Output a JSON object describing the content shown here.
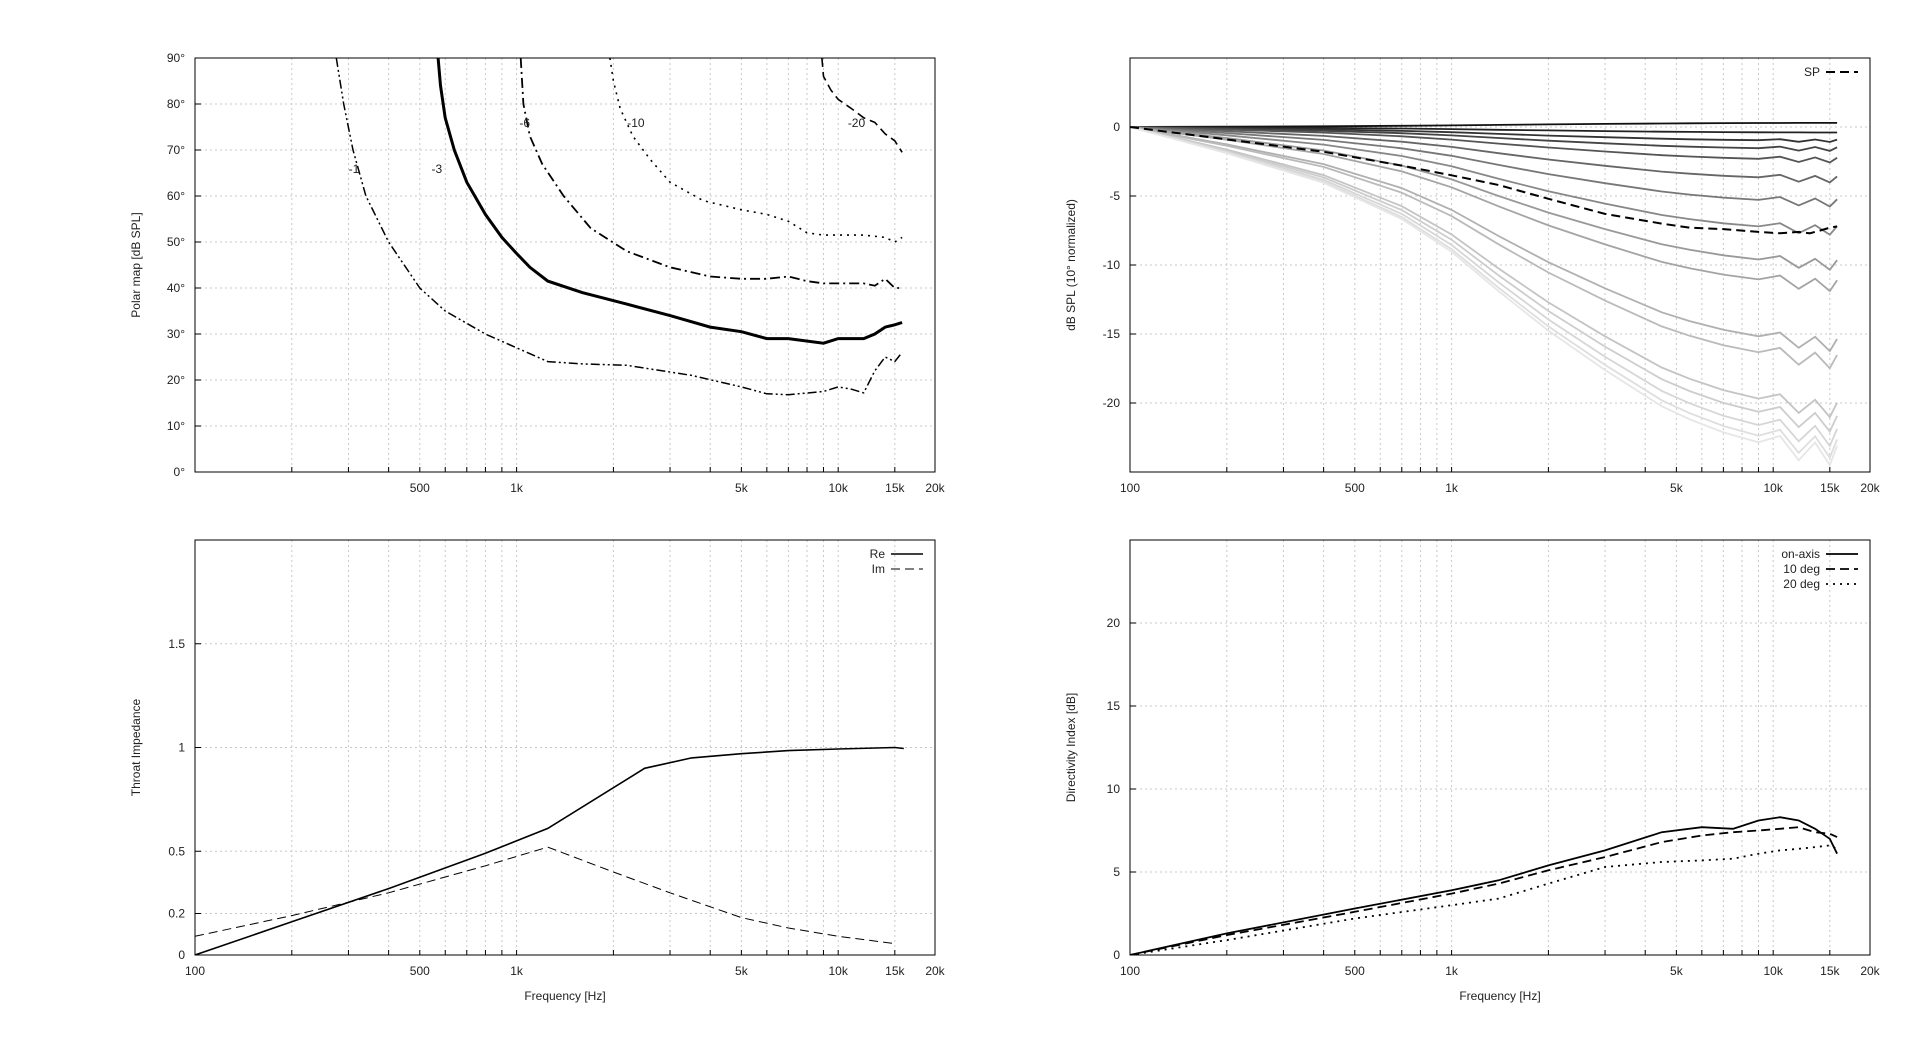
{
  "chart_data": [
    {
      "type": "line",
      "panel": "polar-map",
      "ylabel": "Polar map [dB SPL]",
      "xlabel": "",
      "xscale": "log",
      "xlim": [
        100,
        20000
      ],
      "ylim": [
        0,
        90
      ],
      "xticks": [
        {
          "v": 500,
          "t": "500"
        },
        {
          "v": 1000,
          "t": "1k"
        },
        {
          "v": 5000,
          "t": "5k"
        },
        {
          "v": 10000,
          "t": "10k"
        },
        {
          "v": 15000,
          "t": "15k"
        },
        {
          "v": 20000,
          "t": "20k"
        }
      ],
      "yticks": [
        {
          "v": 0,
          "t": "0°"
        },
        {
          "v": 10,
          "t": "10°"
        },
        {
          "v": 20,
          "t": "20°"
        },
        {
          "v": 30,
          "t": "30°"
        },
        {
          "v": 40,
          "t": "40°"
        },
        {
          "v": 50,
          "t": "50°"
        },
        {
          "v": 60,
          "t": "60°"
        },
        {
          "v": 70,
          "t": "70°"
        },
        {
          "v": 80,
          "t": "80°"
        },
        {
          "v": 90,
          "t": "90°"
        }
      ],
      "grid": true,
      "series": [
        {
          "name": "-1",
          "style": "dashdotdot",
          "width": 1.5,
          "label_at": [
            312,
            65
          ],
          "x": [
            275,
            290,
            310,
            340,
            400,
            500,
            600,
            800,
            1000,
            1250,
            1600,
            2200,
            3500,
            5000,
            6000,
            7000,
            9000,
            10000,
            11000,
            12000,
            13000,
            14000,
            15000,
            15800
          ],
          "y": [
            90,
            80,
            70,
            60,
            50,
            40,
            35,
            30,
            27,
            24,
            23.5,
            23.2,
            21,
            18.5,
            17,
            16.8,
            17.5,
            18.5,
            18,
            17.2,
            22,
            25,
            24,
            26
          ]
        },
        {
          "name": "-3",
          "style": "solid",
          "width": 3,
          "label_at": [
            565,
            65
          ],
          "x": [
            570,
            580,
            600,
            640,
            700,
            800,
            900,
            1000,
            1100,
            1250,
            1600,
            2200,
            3000,
            4000,
            5000,
            6000,
            7000,
            9000,
            10000,
            11000,
            12000,
            13000,
            14000,
            15000,
            15800
          ],
          "y": [
            90,
            84,
            77,
            70,
            63,
            56,
            51,
            47.5,
            44.5,
            41.5,
            39,
            36.5,
            34,
            31.5,
            30.5,
            29,
            29,
            28,
            29,
            29,
            29,
            30,
            31.5,
            32,
            32.5
          ]
        },
        {
          "name": "-6",
          "style": "dashdot",
          "width": 1.8,
          "label_at": [
            1060,
            75
          ],
          "x": [
            1030,
            1050,
            1100,
            1200,
            1400,
            1700,
            2200,
            3000,
            4000,
            5000,
            6000,
            7000,
            8000,
            9000,
            10000,
            12000,
            13000,
            14000,
            15000,
            15800
          ],
          "y": [
            90,
            80,
            73,
            67,
            60,
            53,
            48,
            44.5,
            42.5,
            42,
            42,
            42.5,
            41.5,
            41,
            41,
            41,
            40.5,
            42,
            40,
            40
          ]
        },
        {
          "name": "-10",
          "style": "dotted",
          "width": 1.6,
          "label_at": [
            2350,
            75
          ],
          "x": [
            1950,
            2000,
            2100,
            2300,
            2600,
            3000,
            3800,
            5000,
            6000,
            7000,
            8000,
            9000,
            10000,
            12000,
            14000,
            15000,
            15800
          ],
          "y": [
            90,
            85,
            79,
            73,
            68,
            63,
            59,
            57,
            56,
            54.5,
            52,
            51.5,
            51.5,
            51.5,
            51,
            50,
            51
          ]
        },
        {
          "name": "-20",
          "style": "dashed",
          "width": 1.6,
          "label_at": [
            11400,
            75
          ],
          "x": [
            8900,
            9000,
            9500,
            10000,
            11000,
            12000,
            13000,
            14000,
            15000,
            15800
          ],
          "y": [
            90,
            86,
            83,
            81,
            79,
            77,
            76,
            73.5,
            72,
            69.5
          ]
        }
      ]
    },
    {
      "type": "line",
      "panel": "normalized-spl",
      "ylabel": "dB SPL (10° normalized)",
      "xlabel": "",
      "xscale": "log",
      "xlim": [
        100,
        20000
      ],
      "ylim": [
        -25,
        5
      ],
      "xticks": [
        {
          "v": 100,
          "t": "100"
        },
        {
          "v": 500,
          "t": "500"
        },
        {
          "v": 1000,
          "t": "1k"
        },
        {
          "v": 5000,
          "t": "5k"
        },
        {
          "v": 10000,
          "t": "10k"
        },
        {
          "v": 15000,
          "t": "15k"
        },
        {
          "v": 20000,
          "t": "20k"
        }
      ],
      "yticks": [
        {
          "v": 0,
          "t": "0"
        },
        {
          "v": -5,
          "t": "-5"
        },
        {
          "v": -10,
          "t": "-10"
        },
        {
          "v": -15,
          "t": "-15"
        },
        {
          "v": -20,
          "t": "-20"
        }
      ],
      "grid": true,
      "legend": {
        "position": "top-right",
        "entries": [
          "SP"
        ]
      },
      "angle_curves": {
        "x": [
          100,
          200,
          400,
          700,
          1000,
          1400,
          2000,
          3000,
          4500,
          5500,
          7000,
          9000,
          10500,
          12000,
          13500,
          15000,
          15800
        ],
        "end_values": [
          0.3,
          -0.4,
          -1.0,
          -1.6,
          -2.4,
          -3.8,
          -5.5,
          -7.5,
          -10.0,
          -11.5,
          -15.8,
          -17.0,
          -20.5,
          -21.5,
          -22.5,
          -23.3,
          -23.8
        ],
        "colors": [
          "#111111",
          "#222222",
          "#333333",
          "#444444",
          "#555555",
          "#666666",
          "#777777",
          "#888888",
          "#999999",
          "#a4a4a4",
          "#b0b0b0",
          "#bababa",
          "#c4c4c4",
          "#cdcdcd",
          "#d6d6d6",
          "#dedede",
          "#e6e6e6"
        ]
      },
      "series": [
        {
          "name": "SP",
          "style": "dashed",
          "width": 2,
          "x": [
            100,
            200,
            400,
            700,
            1000,
            1400,
            2000,
            3000,
            4500,
            5500,
            7000,
            9000,
            10500,
            12000,
            13000,
            14000,
            15000,
            15800
          ],
          "y": [
            0,
            -0.9,
            -1.8,
            -2.8,
            -3.5,
            -4.2,
            -5.2,
            -6.3,
            -7.0,
            -7.3,
            -7.4,
            -7.6,
            -7.7,
            -7.6,
            -7.7,
            -7.5,
            -7.3,
            -7.2
          ]
        }
      ]
    },
    {
      "type": "line",
      "panel": "throat-impedance",
      "ylabel": "Throat Impedance",
      "xlabel": "Frequency [Hz]",
      "xscale": "log",
      "xlim": [
        100,
        20000
      ],
      "ylim": [
        0,
        2
      ],
      "xticks": [
        {
          "v": 100,
          "t": "100"
        },
        {
          "v": 500,
          "t": "500"
        },
        {
          "v": 1000,
          "t": "1k"
        },
        {
          "v": 5000,
          "t": "5k"
        },
        {
          "v": 10000,
          "t": "10k"
        },
        {
          "v": 15000,
          "t": "15k"
        },
        {
          "v": 20000,
          "t": "20k"
        }
      ],
      "yticks": [
        {
          "v": 0,
          "t": "0"
        },
        {
          "v": 0.2,
          "t": "0.2"
        },
        {
          "v": 0.5,
          "t": "0.5"
        },
        {
          "v": 1,
          "t": "1"
        },
        {
          "v": 1.5,
          "t": "1.5"
        }
      ],
      "grid": true,
      "legend": {
        "position": "top-right",
        "entries": [
          "Re",
          "Im"
        ]
      },
      "series": [
        {
          "name": "Re",
          "style": "solid",
          "width": 1.6,
          "x": [
            100,
            200,
            400,
            800,
            1250,
            2500,
            3500,
            5000,
            7000,
            10000,
            15000,
            16000
          ],
          "y": [
            0,
            0.16,
            0.32,
            0.49,
            0.61,
            0.9,
            0.95,
            0.97,
            0.985,
            0.993,
            1.0,
            0.995
          ]
        },
        {
          "name": "Im",
          "style": "dashed",
          "width": 1,
          "x": [
            100,
            200,
            400,
            800,
            1250,
            2000,
            3000,
            5000,
            7000,
            10000,
            15000
          ],
          "y": [
            0.09,
            0.19,
            0.3,
            0.43,
            0.52,
            0.4,
            0.3,
            0.18,
            0.13,
            0.09,
            0.055
          ]
        }
      ]
    },
    {
      "type": "line",
      "panel": "directivity-index",
      "ylabel": "Directivity Index [dB]",
      "xlabel": "Frequency [Hz]",
      "xscale": "log",
      "xlim": [
        100,
        20000
      ],
      "ylim": [
        0,
        25
      ],
      "xticks": [
        {
          "v": 100,
          "t": "100"
        },
        {
          "v": 500,
          "t": "500"
        },
        {
          "v": 1000,
          "t": "1k"
        },
        {
          "v": 5000,
          "t": "5k"
        },
        {
          "v": 10000,
          "t": "10k"
        },
        {
          "v": 15000,
          "t": "15k"
        },
        {
          "v": 20000,
          "t": "20k"
        }
      ],
      "yticks": [
        {
          "v": 0,
          "t": "0"
        },
        {
          "v": 5,
          "t": "5"
        },
        {
          "v": 10,
          "t": "10"
        },
        {
          "v": 15,
          "t": "15"
        },
        {
          "v": 20,
          "t": "20"
        }
      ],
      "grid": true,
      "legend": {
        "position": "top-right",
        "entries": [
          "on-axis",
          "10 deg",
          "20 deg"
        ]
      },
      "series": [
        {
          "name": "on-axis",
          "style": "solid",
          "width": 1.8,
          "x": [
            100,
            200,
            500,
            1000,
            1400,
            2000,
            3000,
            4500,
            6000,
            7500,
            9000,
            10500,
            12000,
            13500,
            15000,
            15800
          ],
          "y": [
            0,
            1.3,
            2.8,
            3.9,
            4.5,
            5.4,
            6.3,
            7.4,
            7.7,
            7.6,
            8.1,
            8.3,
            8.1,
            7.6,
            7.0,
            6.1
          ]
        },
        {
          "name": "10 deg",
          "style": "dashed",
          "width": 1.8,
          "x": [
            100,
            200,
            500,
            1000,
            1400,
            2000,
            3000,
            4500,
            6000,
            7500,
            9000,
            10500,
            12000,
            13500,
            15000,
            15800
          ],
          "y": [
            0,
            1.2,
            2.6,
            3.7,
            4.3,
            5.1,
            5.9,
            6.8,
            7.2,
            7.4,
            7.5,
            7.6,
            7.7,
            7.4,
            7.3,
            7.1
          ]
        },
        {
          "name": "20 deg",
          "style": "dotted",
          "width": 1.8,
          "x": [
            100,
            200,
            500,
            1000,
            1400,
            2000,
            3000,
            4500,
            6000,
            7500,
            9000,
            10500,
            12000,
            13500,
            15000,
            15800
          ],
          "y": [
            0,
            0.9,
            2.2,
            3.0,
            3.4,
            4.3,
            5.3,
            5.6,
            5.7,
            5.8,
            6.1,
            6.3,
            6.4,
            6.5,
            6.6,
            6.4
          ]
        }
      ]
    }
  ]
}
